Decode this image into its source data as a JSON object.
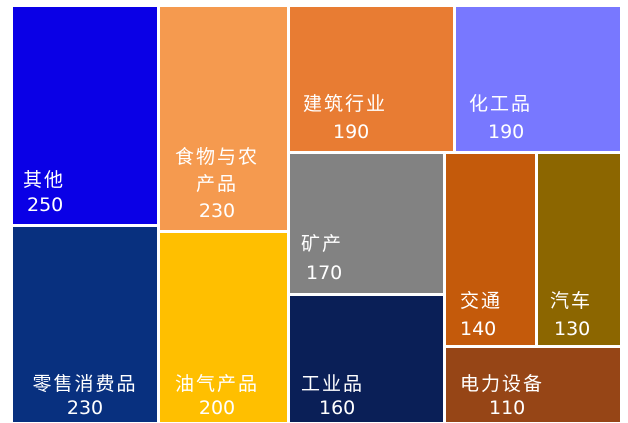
{
  "chart_data": {
    "type": "treemap",
    "title": "",
    "items": [
      {
        "name": "其他",
        "name_lines": [
          "其他"
        ],
        "value": 250,
        "color": "#0A00E6"
      },
      {
        "name": "零售消费品",
        "name_lines": [
          "零售消费品"
        ],
        "value": 230,
        "color": "#08307F"
      },
      {
        "name": "食物与农产品",
        "name_lines": [
          "食物与农",
          "产品"
        ],
        "value": 230,
        "color": "#F59A4F"
      },
      {
        "name": "油气产品",
        "name_lines": [
          "油气产品"
        ],
        "value": 200,
        "color": "#FFBF00"
      },
      {
        "name": "建筑行业",
        "name_lines": [
          "建筑行业"
        ],
        "value": 190,
        "color": "#E87C33"
      },
      {
        "name": "化工品",
        "name_lines": [
          "化工品"
        ],
        "value": 190,
        "color": "#7878FF"
      },
      {
        "name": "矿产",
        "name_lines": [
          "矿产"
        ],
        "value": 170,
        "color": "#828282"
      },
      {
        "name": "工业品",
        "name_lines": [
          "工业品"
        ],
        "value": 160,
        "color": "#0A1F57"
      },
      {
        "name": "交通",
        "name_lines": [
          "交通"
        ],
        "value": 140,
        "color": "#C45A0B"
      },
      {
        "name": "汽车",
        "name_lines": [
          "汽车"
        ],
        "value": 130,
        "color": "#8C6600"
      },
      {
        "name": "电力设备",
        "name_lines": [
          "电力设备"
        ],
        "value": 110,
        "color": "#964516"
      }
    ]
  }
}
